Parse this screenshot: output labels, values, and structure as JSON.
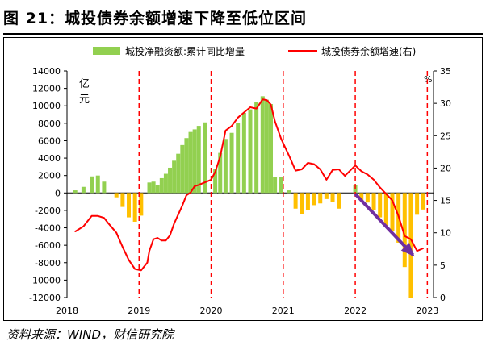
{
  "title": "图 21：城投债券余额增速下降至低位区间",
  "source": "资料来源：WIND，财信研究院",
  "chart_data": {
    "type": "bar+line",
    "left_axis": {
      "unit_label": "亿元",
      "ylim": [
        -12000,
        14000
      ],
      "ticks": [
        -12000,
        -10000,
        -8000,
        -6000,
        -4000,
        -2000,
        0,
        2000,
        4000,
        6000,
        8000,
        10000,
        12000,
        14000
      ]
    },
    "right_axis": {
      "unit_label": "%",
      "ylim": [
        0,
        35
      ],
      "ticks": [
        0,
        5,
        10,
        15,
        20,
        25,
        30,
        35
      ]
    },
    "x_tick_labels": [
      "2018",
      "2019",
      "2020",
      "2021",
      "2022",
      "2023"
    ],
    "colors": {
      "positive_bar": "#92d050",
      "negative_bar": "#ffc000",
      "line": "#ff0000",
      "divider": "#ff0000",
      "arrow": "#7030a0"
    },
    "series": [
      {
        "name": "城投净融资额:累计同比增量",
        "kind": "bar",
        "axis": "left",
        "values": [
          300,
          700,
          1900,
          2000,
          1300,
          0,
          -500,
          -1600,
          -2800,
          -3300,
          -2600,
          0,
          1200,
          1300,
          900,
          1700,
          2200,
          2900,
          3700,
          4500,
          5500,
          6300,
          7000,
          7300,
          7700,
          8100,
          0,
          2800,
          4600,
          6200,
          6900,
          8000,
          9200,
          9600,
          10400,
          11100,
          10700,
          10200,
          1800,
          1800,
          300,
          -1800,
          -2400,
          -2000,
          -1400,
          -1200,
          -700,
          -1000,
          -1800,
          0,
          900,
          -800,
          -1100,
          -2000,
          -2800,
          -3800,
          -4400,
          -5700,
          -8500,
          -12000,
          -2500,
          -1900
        ]
      },
      {
        "name": "城投债券余额增速(右)",
        "kind": "line",
        "axis": "right",
        "values": [
          10.2,
          11,
          12.6,
          12.6,
          12.3,
          11.5,
          10,
          7.8,
          5.8,
          4.4,
          4.2,
          5.4,
          7.2,
          9,
          9.2,
          8.8,
          8.8,
          9.6,
          11.4,
          12.8,
          14.2,
          15.8,
          16.2,
          17.2,
          17.4,
          17.8,
          18.2,
          19.4,
          21.8,
          25.8,
          26.5,
          27.8,
          28.6,
          29.4,
          29.2,
          30.6,
          30.5,
          29.8,
          27.2,
          24.5,
          21.8,
          19.6,
          19.8,
          20.8,
          20.6,
          19.8,
          18.2,
          19.7,
          19.8,
          18.8,
          20.4,
          19.5,
          19,
          18.2,
          17,
          16,
          15,
          12.6,
          9.5,
          9,
          7.2,
          7.6
        ]
      }
    ],
    "x_positions": [
      0.2,
      0.4,
      0.6,
      0.75,
      0.9,
      1,
      1.2,
      1.35,
      1.5,
      1.65,
      1.8,
      1.95,
      2,
      2.1,
      2.2,
      2.3,
      2.4,
      2.5,
      2.6,
      2.7,
      2.8,
      2.9,
      3,
      3.1,
      3.2,
      3.35,
      3.5,
      3.6,
      3.72,
      3.85,
      4,
      4.15,
      4.3,
      4.45,
      4.6,
      4.75,
      4.85,
      4.95,
      5.05,
      5.2,
      5.4,
      5.55,
      5.7,
      5.85,
      6,
      6.15,
      6.3,
      6.45,
      6.6,
      6.75,
      7,
      7.15,
      7.3,
      7.45,
      7.6,
      7.75,
      7.9,
      8.05,
      8.2,
      8.35,
      8.5,
      8.65
    ],
    "x_range": [
      0,
      8.9
    ],
    "x_tick_positions": [
      0,
      1.75,
      3.5,
      5.25,
      7,
      8.75
    ],
    "dividers_at": [
      1.75,
      3.5,
      5.25,
      7,
      8.75
    ],
    "trend_arrow": {
      "from": [
        7,
        16
      ],
      "to": [
        8.4,
        6.6
      ]
    }
  }
}
